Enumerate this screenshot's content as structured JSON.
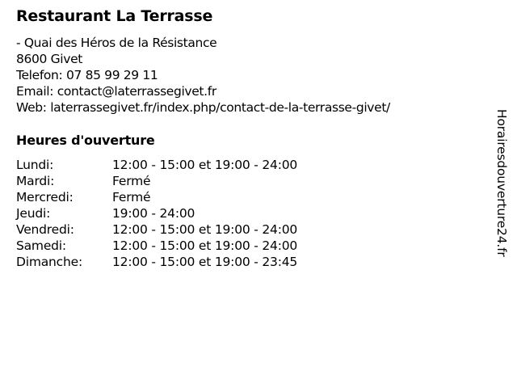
{
  "restaurant": {
    "name": "Restaurant La Terrasse",
    "address": "- Quai des Héros de la Résistance",
    "city": "8600 Givet",
    "phone": "Telefon: 07 85 99 29 11",
    "email": "Email: contact@laterrassegivet.fr",
    "web": "Web: laterrassegivet.fr/index.php/contact-de-la-terrasse-givet/"
  },
  "hours": {
    "title": "Heures d'ouverture",
    "rows": [
      {
        "day": "Lundi:",
        "time": "12:00 - 15:00 et 19:00 - 24:00"
      },
      {
        "day": "Mardi:",
        "time": "Fermé"
      },
      {
        "day": "Mercredi:",
        "time": "Fermé"
      },
      {
        "day": "Jeudi:",
        "time": "19:00 - 24:00"
      },
      {
        "day": "Vendredi:",
        "time": "12:00 - 15:00 et 19:00 - 24:00"
      },
      {
        "day": "Samedi:",
        "time": "12:00 - 15:00 et 19:00 - 24:00"
      },
      {
        "day": "Dimanche:",
        "time": "12:00 - 15:00 et 19:00 - 23:45"
      }
    ]
  },
  "watermark": "Horairesdouverture24.fr"
}
